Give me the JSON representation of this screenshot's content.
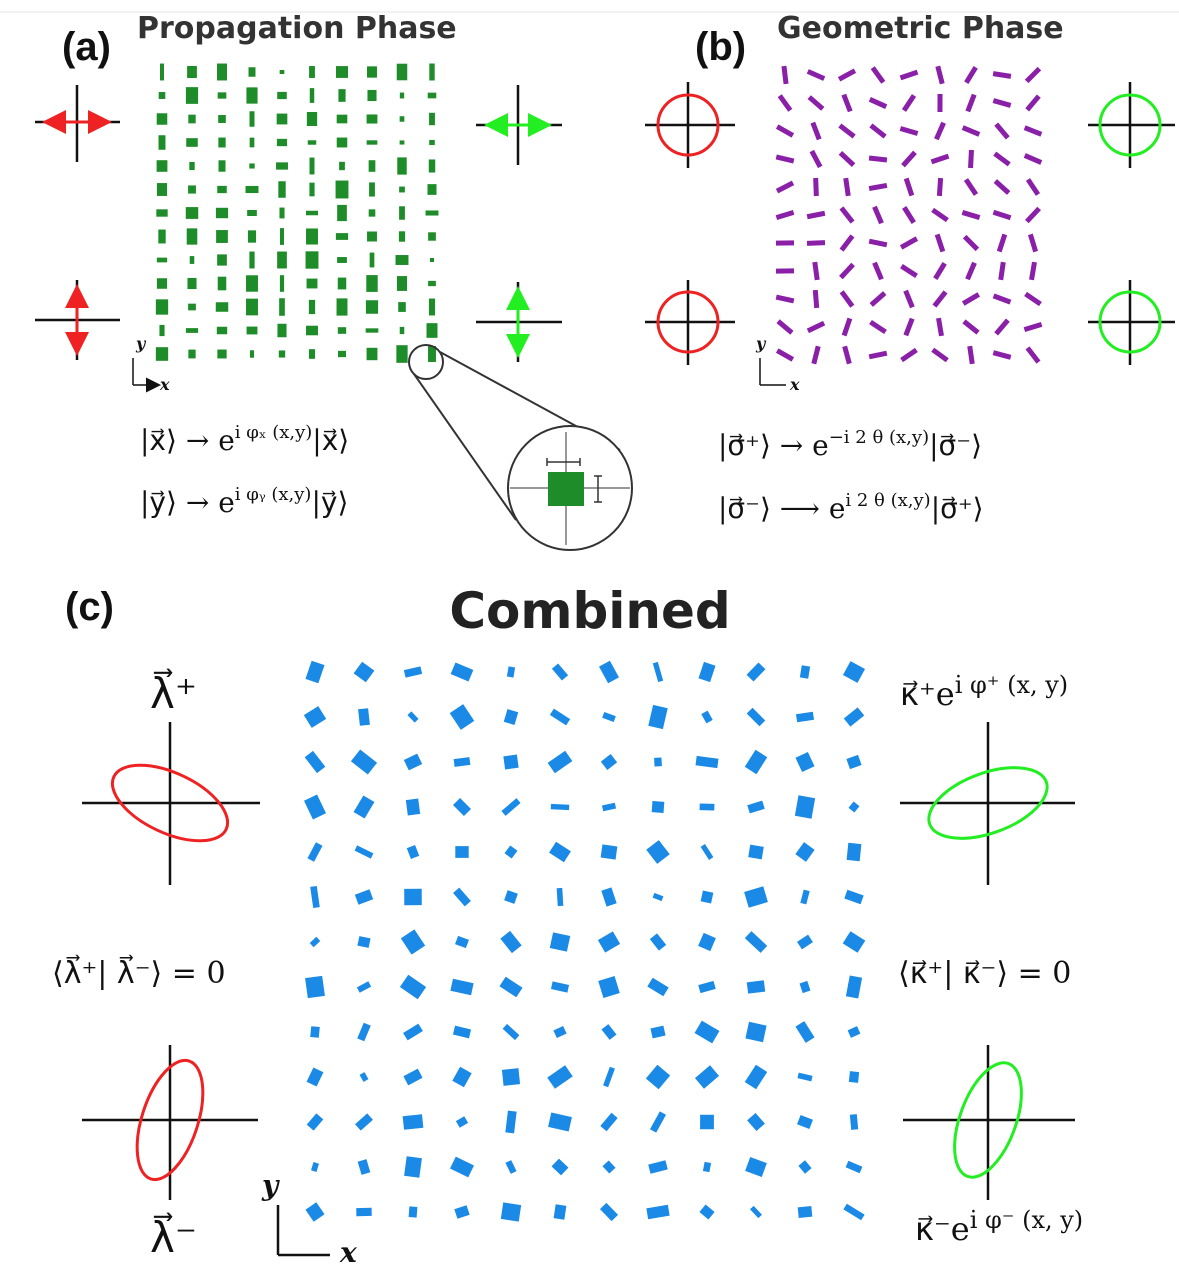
{
  "panels": [
    {
      "label": "(a)",
      "title": "Propagation Phase",
      "axis_x": "x",
      "axis_y": "y",
      "equations": [
        {
          "lhs": "|x⃗⟩ → e",
          "exp": "i φₓ (x,y)",
          "rhs": "|x⃗⟩"
        },
        {
          "lhs": "|y⃗⟩ → e",
          "exp": "i φᵧ (x,y)",
          "rhs": "|y⃗⟩"
        }
      ]
    },
    {
      "label": "(b)",
      "title": "Geometric Phase",
      "axis_x": "x",
      "axis_y": "y",
      "equations": [
        {
          "lhs": "|σ⃗⁺⟩ → e",
          "exp": "−i 2 θ (x,y)",
          "rhs": "|σ⃗⁻⟩"
        },
        {
          "lhs": "|σ⃗⁻⟩ ⟶ e",
          "exp": "i 2 θ (x,y)",
          "rhs": "|σ⃗⁺⟩"
        }
      ]
    },
    {
      "label": "(c)",
      "title": "Combined",
      "axis_x": "x",
      "axis_y": "y",
      "left": {
        "top": "λ⃗⁺",
        "orth": "⟨λ⃗⁺| λ⃗⁻⟩ = 0",
        "bottom": "λ⃗⁻"
      },
      "right": {
        "top": {
          "base": "κ⃗⁺e",
          "exp": "i φ⁺ (x, y)"
        },
        "orth": "⟨κ⃗⁺| κ⃗⁻⟩ = 0",
        "bottom": {
          "base": "κ⃗⁻e",
          "exp": "i φ⁻ (x, y)"
        }
      }
    }
  ]
}
